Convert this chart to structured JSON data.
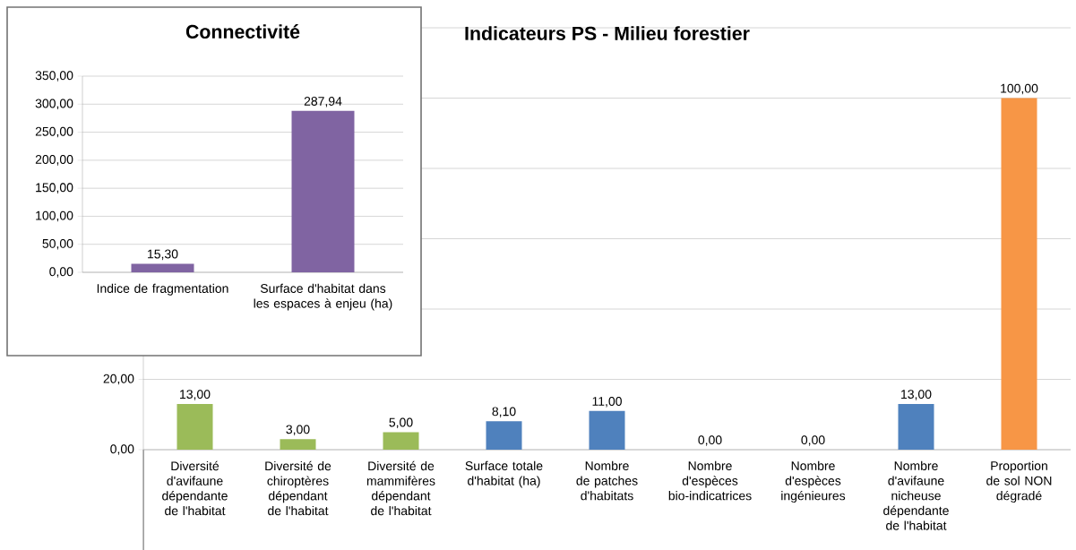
{
  "chart_data": [
    {
      "type": "bar",
      "title": "Connectivité",
      "categories": [
        "Indice de fragmentation",
        "Surface d'habitat dans les espaces à enjeu (ha)"
      ],
      "values": [
        15.3,
        287.94
      ],
      "value_labels": [
        "15,30",
        "287,94"
      ],
      "color": "#8064a2",
      "ylim": [
        0,
        350
      ],
      "yticks": [
        {
          "value": 0,
          "label": "0,00"
        },
        {
          "value": 50,
          "label": "50,00"
        },
        {
          "value": 100,
          "label": "100,00"
        },
        {
          "value": 150,
          "label": "150,00"
        },
        {
          "value": 200,
          "label": "200,00"
        },
        {
          "value": 250,
          "label": "250,00"
        },
        {
          "value": 300,
          "label": "300,00"
        },
        {
          "value": 350,
          "label": "350,00"
        }
      ],
      "grid": "y"
    },
    {
      "type": "bar",
      "title": "Indicateurs PS - Milieu forestier",
      "categories": [
        "Diversité d'avifaune dépendante de l'habitat",
        "Diversité de chiroptères dépendant de l'habitat",
        "Diversité de mammifères dépendant de l'habitat",
        "Surface totale d'habitat (ha)",
        "Nombre de patches d'habitats",
        "Nombre d'espèces bio-indicatrices",
        "Nombre d'espèces ingénieures",
        "Nombre d'avifaune nicheuse dépendante de l'habitat",
        "Proportion de sol NON dégradé"
      ],
      "values": [
        13,
        3,
        5,
        8.1,
        11,
        0,
        0,
        13,
        100
      ],
      "value_labels": [
        "13,00",
        "3,00",
        "5,00",
        "8,10",
        "11,00",
        "0,00",
        "0,00",
        "13,00",
        "100,00"
      ],
      "colors": [
        "#9bbb59",
        "#9bbb59",
        "#9bbb59",
        "#4f81bd",
        "#4f81bd",
        "#4f81bd",
        "#4f81bd",
        "#4f81bd",
        "#f79646"
      ],
      "ylim": [
        0,
        120
      ],
      "yticks": [
        {
          "value": 0,
          "label": "0,00"
        },
        {
          "value": 20,
          "label": "20,00"
        },
        {
          "value": 40,
          "label": null
        },
        {
          "value": 60,
          "label": null
        },
        {
          "value": 80,
          "label": null
        },
        {
          "value": 100,
          "label": null
        },
        {
          "value": 120,
          "label": null
        }
      ],
      "grid": "y"
    }
  ]
}
